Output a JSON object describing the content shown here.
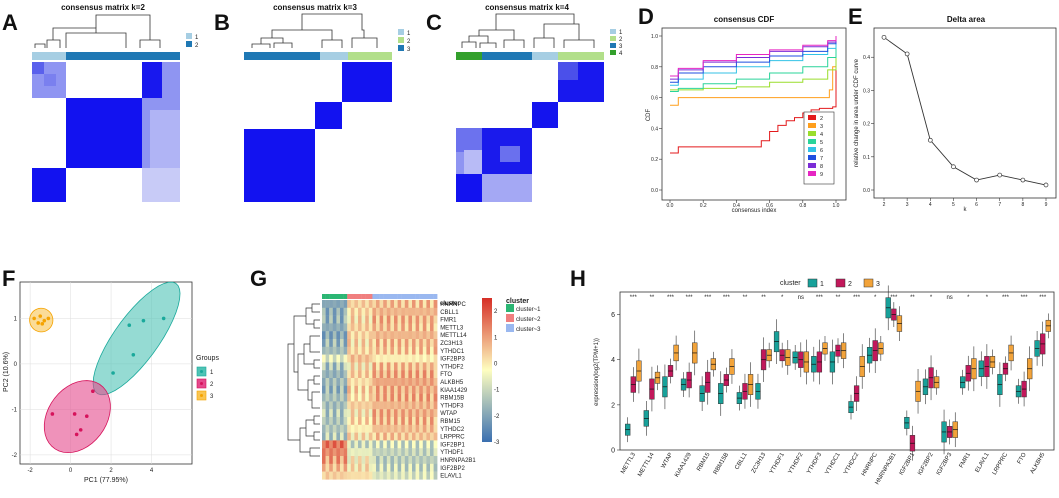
{
  "panels": {
    "A": {
      "letter": "A",
      "title": "consensus matrix k=2",
      "legend": [
        "1",
        "2"
      ],
      "colors": [
        "#a6cee3",
        "#1f78b4"
      ]
    },
    "B": {
      "letter": "B",
      "title": "consensus matrix k=3",
      "legend": [
        "1",
        "2",
        "3"
      ],
      "colors": [
        "#a6cee3",
        "#b2df8a",
        "#1f78b4"
      ]
    },
    "C": {
      "letter": "C",
      "title": "consensus matrix k=4",
      "legend": [
        "1",
        "2",
        "3",
        "4"
      ],
      "colors": [
        "#a6cee3",
        "#b2df8a",
        "#1f78b4",
        "#33a02c"
      ]
    },
    "D": {
      "letter": "D"
    },
    "E": {
      "letter": "E"
    },
    "F": {
      "letter": "F"
    },
    "G": {
      "letter": "G"
    },
    "H": {
      "letter": "H"
    }
  },
  "chart_data": [
    {
      "id": "D",
      "type": "line",
      "title": "consensus CDF",
      "xlabel": "consensus index",
      "ylabel": "CDF",
      "xlim": [
        0,
        1
      ],
      "ylim": [
        0,
        1
      ],
      "xticks": [
        "0.0",
        "0.2",
        "0.4",
        "0.6",
        "0.8",
        "1.0"
      ],
      "yticks": [
        "0.0",
        "0.2",
        "0.4",
        "0.6",
        "0.8",
        "1.0"
      ],
      "series": [
        {
          "name": "2",
          "color": "#e31a1c",
          "x": [
            0,
            0.02,
            0.05,
            0.5,
            0.55,
            0.6,
            0.65,
            0.7,
            0.75,
            0.8,
            0.85,
            0.9,
            0.95,
            0.98,
            1.0
          ],
          "values": [
            0.24,
            0.24,
            0.28,
            0.28,
            0.32,
            0.38,
            0.42,
            0.45,
            0.47,
            0.5,
            0.52,
            0.53,
            0.53,
            0.54,
            1.0
          ]
        },
        {
          "name": "3",
          "color": "#ff9f1c",
          "x": [
            0,
            0.05,
            0.1,
            0.3,
            0.6,
            0.9,
            0.96,
            0.98,
            1.0
          ],
          "values": [
            0.55,
            0.6,
            0.6,
            0.6,
            0.6,
            0.6,
            0.65,
            0.8,
            1.0
          ]
        },
        {
          "name": "4",
          "color": "#9ade2c",
          "x": [
            0,
            0.05,
            0.2,
            0.4,
            0.6,
            0.8,
            0.95,
            1.0
          ],
          "values": [
            0.65,
            0.65,
            0.66,
            0.67,
            0.7,
            0.72,
            0.78,
            1.0
          ]
        },
        {
          "name": "5",
          "color": "#2ad49a",
          "x": [
            0,
            0.05,
            0.2,
            0.4,
            0.6,
            0.8,
            0.95,
            1.0
          ],
          "values": [
            0.64,
            0.66,
            0.69,
            0.72,
            0.76,
            0.8,
            0.86,
            1.0
          ]
        },
        {
          "name": "6",
          "color": "#33c2e6",
          "x": [
            0,
            0.05,
            0.2,
            0.4,
            0.6,
            0.8,
            0.95,
            1.0
          ],
          "values": [
            0.68,
            0.72,
            0.76,
            0.8,
            0.84,
            0.88,
            0.92,
            1.0
          ]
        },
        {
          "name": "7",
          "color": "#1f4ee0",
          "x": [
            0,
            0.05,
            0.2,
            0.4,
            0.6,
            0.8,
            0.95,
            1.0
          ],
          "values": [
            0.7,
            0.76,
            0.8,
            0.83,
            0.87,
            0.9,
            0.95,
            1.0
          ]
        },
        {
          "name": "8",
          "color": "#7b2cd6",
          "x": [
            0,
            0.05,
            0.2,
            0.4,
            0.6,
            0.8,
            0.95,
            1.0
          ],
          "values": [
            0.72,
            0.78,
            0.83,
            0.86,
            0.9,
            0.93,
            0.96,
            1.0
          ]
        },
        {
          "name": "9",
          "color": "#e626c2",
          "x": [
            0,
            0.05,
            0.2,
            0.4,
            0.6,
            0.8,
            0.95,
            1.0
          ],
          "values": [
            0.74,
            0.79,
            0.84,
            0.88,
            0.91,
            0.94,
            0.97,
            1.0
          ]
        }
      ]
    },
    {
      "id": "E",
      "type": "line",
      "title": "Delta area",
      "xlabel": "k",
      "ylabel": "relative change in area under CDF curve",
      "xlim": [
        2,
        9
      ],
      "ylim": [
        0,
        0.47
      ],
      "categories": [
        "2",
        "3",
        "4",
        "5",
        "6",
        "7",
        "8",
        "9"
      ],
      "yticks": [
        "0.0",
        "0.1",
        "0.2",
        "0.3",
        "0.4"
      ],
      "values": [
        0.46,
        0.41,
        0.15,
        0.07,
        0.03,
        0.045,
        0.03,
        0.015
      ]
    },
    {
      "id": "F",
      "type": "scatter",
      "xlabel": "PC1 (77.95%)",
      "ylabel": "PC2 (10.6%)",
      "xlim": [
        -2.5,
        6
      ],
      "ylim": [
        -2.2,
        1.8
      ],
      "xticks": [
        "-2",
        "0",
        "2",
        "4"
      ],
      "yticks": [
        "-2",
        "-1",
        "0",
        "1"
      ],
      "legend_title": "Groups",
      "series": [
        {
          "name": "1",
          "color": "#1aa99b",
          "fill": "#4fc3b5",
          "x": [
            2.9,
            3.6,
            4.6,
            2.1,
            3.1
          ],
          "values": [
            0.85,
            0.95,
            1.0,
            -0.2,
            0.2
          ]
        },
        {
          "name": "2",
          "color": "#d6135b",
          "fill": "#e5498c",
          "x": [
            -0.9,
            0.2,
            0.5,
            1.1,
            0.8,
            0.3
          ],
          "values": [
            -1.1,
            -1.1,
            -1.45,
            -0.6,
            -1.15,
            -1.55
          ]
        },
        {
          "name": "3",
          "color": "#f5a300",
          "fill": "#f9c552",
          "x": [
            -1.8,
            -1.5,
            -1.3,
            -1.1,
            -1.6,
            -1.4
          ],
          "values": [
            1.0,
            1.05,
            0.95,
            1.0,
            0.9,
            0.88
          ]
        }
      ]
    },
    {
      "id": "G",
      "type": "heatmap",
      "legend_title": "cluster",
      "cluster_legend": [
        "cluster~1",
        "cluster~2",
        "cluster~3"
      ],
      "cluster_colors": [
        "#2bb673",
        "#f07f7f",
        "#9ab8f0"
      ],
      "column_clusters": [
        1,
        1,
        1,
        1,
        1,
        1,
        1,
        2,
        2,
        2,
        2,
        2,
        2,
        2,
        3,
        3,
        3,
        3,
        3,
        3,
        3,
        3,
        3,
        3,
        3,
        3,
        3,
        3,
        3,
        3,
        3,
        3
      ],
      "color_scale": [
        -3,
        -2,
        -1,
        0,
        1,
        2
      ],
      "rows": [
        "HNRNPC",
        "CBLL1",
        "FMR1",
        "METTL3",
        "METTL14",
        "ZC3H13",
        "YTHDC1",
        "IGF2BP3",
        "YTHDF2",
        "FTO",
        "ALKBH5",
        "KIAA1429",
        "RBM15B",
        "YTHDF3",
        "WTAP",
        "RBM15",
        "YTHDC2",
        "LRPPRC",
        "IGF2BP1",
        "YTHDF1",
        "HNRNPA2B1",
        "IGF2BP2",
        "ELAVL1"
      ],
      "row_pattern": [
        [
          -1.6,
          0.6,
          0.8
        ],
        [
          -1.5,
          0.5,
          0.9
        ],
        [
          -1.4,
          0.4,
          0.9
        ],
        [
          -1.5,
          0.6,
          0.8
        ],
        [
          -1.6,
          0.5,
          0.9
        ],
        [
          -1.3,
          0.4,
          0.8
        ],
        [
          -1.2,
          0.5,
          0.7
        ],
        [
          -0.4,
          0.8,
          0.2
        ],
        [
          -1.1,
          0.3,
          0.8
        ],
        [
          -1.4,
          0.6,
          1.0
        ],
        [
          -1.2,
          0.4,
          1.1
        ],
        [
          -1.3,
          0.5,
          1.0
        ],
        [
          -1.1,
          0.4,
          1.0
        ],
        [
          -1.2,
          0.6,
          0.9
        ],
        [
          -1.0,
          0.3,
          1.0
        ],
        [
          -1.1,
          0.5,
          0.9
        ],
        [
          -1.0,
          0.2,
          0.8
        ],
        [
          -0.9,
          0.3,
          0.7
        ],
        [
          1.8,
          -0.7,
          -0.6
        ],
        [
          1.5,
          -0.3,
          -0.8
        ],
        [
          1.2,
          0.1,
          -0.9
        ],
        [
          0.8,
          0.3,
          -0.7
        ],
        [
          0.6,
          0.4,
          -0.5
        ]
      ]
    },
    {
      "id": "H",
      "type": "bar",
      "subtype": "boxplot",
      "ylabel": "expression(log2(TPM+1))",
      "legend_title": "cluster",
      "legend": [
        "1",
        "2",
        "3"
      ],
      "colors": [
        "#18a19a",
        "#c2185b",
        "#f2a33a"
      ],
      "ylim": [
        0,
        7
      ],
      "yticks": [
        "0",
        "2",
        "4",
        "6"
      ],
      "categories": [
        "METTL3",
        "METTL14",
        "WTAP",
        "KIAA1429",
        "RBM15",
        "RBM15B",
        "CBLL1",
        "ZC3H13",
        "YTHDF1",
        "YTHDF2",
        "YTHDF3",
        "YTHDC1",
        "YTHDC2",
        "HNRNPC",
        "HNRNPA2B1",
        "IGF2BP1",
        "IGF2BP2",
        "IGF2BP3",
        "FMR1",
        "ELAVL1",
        "LRPPRC",
        "FTO",
        "ALKBH5"
      ],
      "significance": [
        "***",
        "**",
        "***",
        "***",
        "***",
        "***",
        "**",
        "**",
        "*",
        "ns",
        "***",
        "**",
        "***",
        "*",
        "***",
        "**",
        "*",
        "ns",
        "*",
        "*",
        "***",
        "***",
        "***"
      ],
      "series": [
        {
          "name": "1",
          "values": [
            0.9,
            1.4,
            2.8,
            2.9,
            2.5,
            2.5,
            2.3,
            2.6,
            4.8,
            4.1,
            3.8,
            3.9,
            1.9,
            4.2,
            6.3,
            1.2,
            2.8,
            0.8,
            3.0,
            3.6,
            2.9,
            2.6,
            4.5
          ]
        },
        {
          "name": "2",
          "values": [
            2.9,
            2.7,
            3.5,
            3.1,
            3.0,
            3.1,
            2.6,
            4.0,
            4.2,
            4.0,
            3.9,
            4.4,
            2.5,
            4.4,
            6.0,
            0.3,
            3.2,
            0.8,
            3.4,
            3.7,
            3.6,
            2.7,
            4.7
          ]
        },
        {
          "name": "3",
          "values": [
            3.5,
            3.2,
            4.3,
            4.3,
            3.8,
            3.7,
            2.9,
            4.2,
            4.1,
            3.9,
            4.5,
            4.4,
            3.7,
            4.5,
            5.6,
            2.6,
            3.0,
            0.9,
            3.6,
            3.9,
            4.3,
            3.6,
            5.5
          ]
        }
      ]
    }
  ]
}
